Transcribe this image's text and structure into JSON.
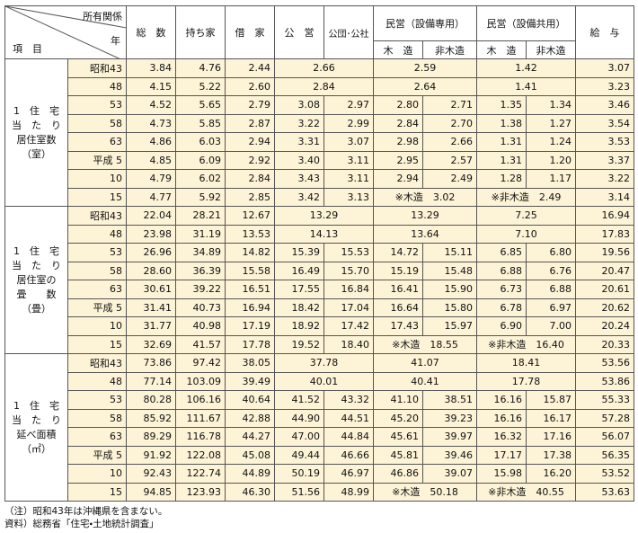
{
  "header": {
    "corner": {
      "ownership": "所有関係",
      "year": "年",
      "item": "項　目"
    },
    "columns": [
      "総　数",
      "持ち家",
      "借　家",
      "公　営",
      "公団･公社",
      "民営（設備専用）",
      "民営（設備共用）",
      "給　与"
    ],
    "subcolumns": [
      "木　造",
      "非木造",
      "木　造",
      "非木造"
    ]
  },
  "groups": [
    {
      "label": [
        "1　住　宅",
        "当　た　り",
        "居住室数",
        "（室）"
      ],
      "rows": [
        {
          "year": "昭和43",
          "cells": [
            "3.84",
            "4.76",
            "2.44",
            "2.66",
            "2.59",
            "1.42",
            "3.07"
          ]
        },
        {
          "year": "48",
          "cells": [
            "4.15",
            "5.22",
            "2.60",
            "2.84",
            "2.64",
            "1.41",
            "3.23"
          ]
        },
        {
          "year": "53",
          "cells": [
            "4.52",
            "5.65",
            "2.79",
            "3.08",
            "2.97",
            "2.80",
            "2.71",
            "1.35",
            "1.34",
            "3.46"
          ]
        },
        {
          "year": "58",
          "cells": [
            "4.73",
            "5.85",
            "2.87",
            "3.22",
            "2.99",
            "2.84",
            "2.70",
            "1.38",
            "1.27",
            "3.54"
          ]
        },
        {
          "year": "63",
          "cells": [
            "4.86",
            "6.03",
            "2.94",
            "3.31",
            "3.07",
            "2.98",
            "2.66",
            "1.31",
            "1.24",
            "3.53"
          ]
        },
        {
          "year": "平成 5",
          "cells": [
            "4.85",
            "6.09",
            "2.92",
            "3.40",
            "3.11",
            "2.95",
            "2.57",
            "1.31",
            "1.20",
            "3.37"
          ]
        },
        {
          "year": "10",
          "cells": [
            "4.79",
            "6.02",
            "2.84",
            "3.43",
            "3.11",
            "2.94",
            "2.49",
            "1.28",
            "1.17",
            "3.22"
          ]
        },
        {
          "year": "15",
          "cells": [
            "4.77",
            "5.92",
            "2.85",
            "3.42",
            "3.13",
            "※木造　3.02",
            "※非木造　2.49",
            "3.14"
          ]
        }
      ]
    },
    {
      "label": [
        "1　住　宅",
        "当　た　り",
        "居住室の",
        "畳　　数",
        "（畳）"
      ],
      "rows": [
        {
          "year": "昭和43",
          "cells": [
            "22.04",
            "28.21",
            "12.67",
            "13.29",
            "13.29",
            "7.25",
            "16.94"
          ]
        },
        {
          "year": "48",
          "cells": [
            "23.98",
            "31.19",
            "13.53",
            "14.13",
            "13.64",
            "7.10",
            "17.83"
          ]
        },
        {
          "year": "53",
          "cells": [
            "26.96",
            "34.89",
            "14.82",
            "15.39",
            "15.53",
            "14.72",
            "15.11",
            "6.85",
            "6.80",
            "19.56"
          ]
        },
        {
          "year": "58",
          "cells": [
            "28.60",
            "36.39",
            "15.58",
            "16.49",
            "15.70",
            "15.19",
            "15.48",
            "6.88",
            "6.76",
            "20.47"
          ]
        },
        {
          "year": "63",
          "cells": [
            "30.61",
            "39.22",
            "16.51",
            "17.55",
            "16.84",
            "16.41",
            "15.90",
            "6.73",
            "6.88",
            "20.61"
          ]
        },
        {
          "year": "平成 5",
          "cells": [
            "31.41",
            "40.73",
            "16.94",
            "18.42",
            "17.04",
            "16.64",
            "15.80",
            "6.78",
            "6.97",
            "20.62"
          ]
        },
        {
          "year": "10",
          "cells": [
            "31.77",
            "40.98",
            "17.19",
            "18.92",
            "17.42",
            "17.43",
            "15.97",
            "6.90",
            "7.00",
            "20.24"
          ]
        },
        {
          "year": "15",
          "cells": [
            "32.69",
            "41.57",
            "17.78",
            "19.52",
            "18.40",
            "※木造　18.55",
            "※非木造　16.40",
            "20.33"
          ]
        }
      ]
    },
    {
      "label": [
        "1　住　宅",
        "当　た　り",
        "延べ面積",
        "（㎡）"
      ],
      "rows": [
        {
          "year": "昭和43",
          "cells": [
            "73.86",
            "97.42",
            "38.05",
            "37.78",
            "41.07",
            "18.41",
            "53.56"
          ]
        },
        {
          "year": "48",
          "cells": [
            "77.14",
            "103.09",
            "39.49",
            "40.01",
            "40.41",
            "17.78",
            "53.86"
          ]
        },
        {
          "year": "53",
          "cells": [
            "80.28",
            "106.16",
            "40.64",
            "41.52",
            "43.32",
            "41.10",
            "38.51",
            "16.16",
            "15.87",
            "55.33"
          ]
        },
        {
          "year": "58",
          "cells": [
            "85.92",
            "111.67",
            "42.88",
            "44.90",
            "44.51",
            "45.20",
            "39.23",
            "16.16",
            "16.17",
            "57.28"
          ]
        },
        {
          "year": "63",
          "cells": [
            "89.29",
            "116.78",
            "44.27",
            "47.00",
            "44.84",
            "45.61",
            "39.97",
            "16.32",
            "17.16",
            "56.07"
          ]
        },
        {
          "year": "平成 5",
          "cells": [
            "91.92",
            "122.08",
            "45.08",
            "49.44",
            "46.66",
            "45.81",
            "39.46",
            "17.17",
            "17.38",
            "56.35"
          ]
        },
        {
          "year": "10",
          "cells": [
            "92.43",
            "122.74",
            "44.89",
            "50.19",
            "46.97",
            "46.86",
            "39.07",
            "15.98",
            "16.20",
            "53.52"
          ]
        },
        {
          "year": "15",
          "cells": [
            "94.85",
            "123.93",
            "46.30",
            "51.56",
            "48.99",
            "※木造　50.18",
            "※非木造　40.55",
            "53.63"
          ]
        }
      ]
    }
  ],
  "notes": [
    "（注）昭和43年は沖縄県を含まない。",
    "資料）総務省「住宅・土地統計調査」"
  ]
}
